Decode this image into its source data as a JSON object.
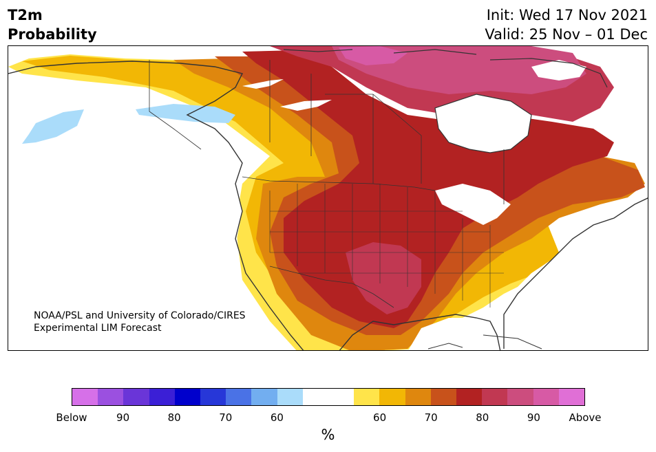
{
  "header": {
    "variable_line1": "T2m",
    "variable_line2": "Probability",
    "init_line": "Init: Wed 17 Nov 2021",
    "valid_line": "Valid: 25 Nov – 01 Dec"
  },
  "credit": {
    "line1": "NOAA/PSL and University of Colorado/CIRES",
    "line2": "Experimental LIM Forecast"
  },
  "colorbar": {
    "unit": "%",
    "colors": [
      "#d670e8",
      "#9b50e0",
      "#6a35d8",
      "#3b1fd6",
      "#0000cc",
      "#2737d8",
      "#4a72e6",
      "#72aef0",
      "#aadcfa",
      "#ffffff",
      "#ffffff",
      "#ffe44a",
      "#f2b705",
      "#df870e",
      "#c8521b",
      "#b22222",
      "#c13852",
      "#cc4d7e",
      "#d75aa5",
      "#e06fd6"
    ],
    "labels": [
      "Below",
      "90",
      "80",
      "70",
      "60",
      "60",
      "70",
      "80",
      "90",
      "Above"
    ]
  },
  "legend_colors": {
    "near_normal": "#ffffff",
    "above_60": "#ffe44a",
    "above_65": "#f2b705",
    "above_70": "#df870e",
    "above_75": "#c8521b",
    "above_80": "#b22222",
    "above_85": "#c13852",
    "above_90": "#cc4d7e",
    "below_60": "#aadcfa",
    "below_70": "#72aef0",
    "below_80": "#4a72e6"
  }
}
